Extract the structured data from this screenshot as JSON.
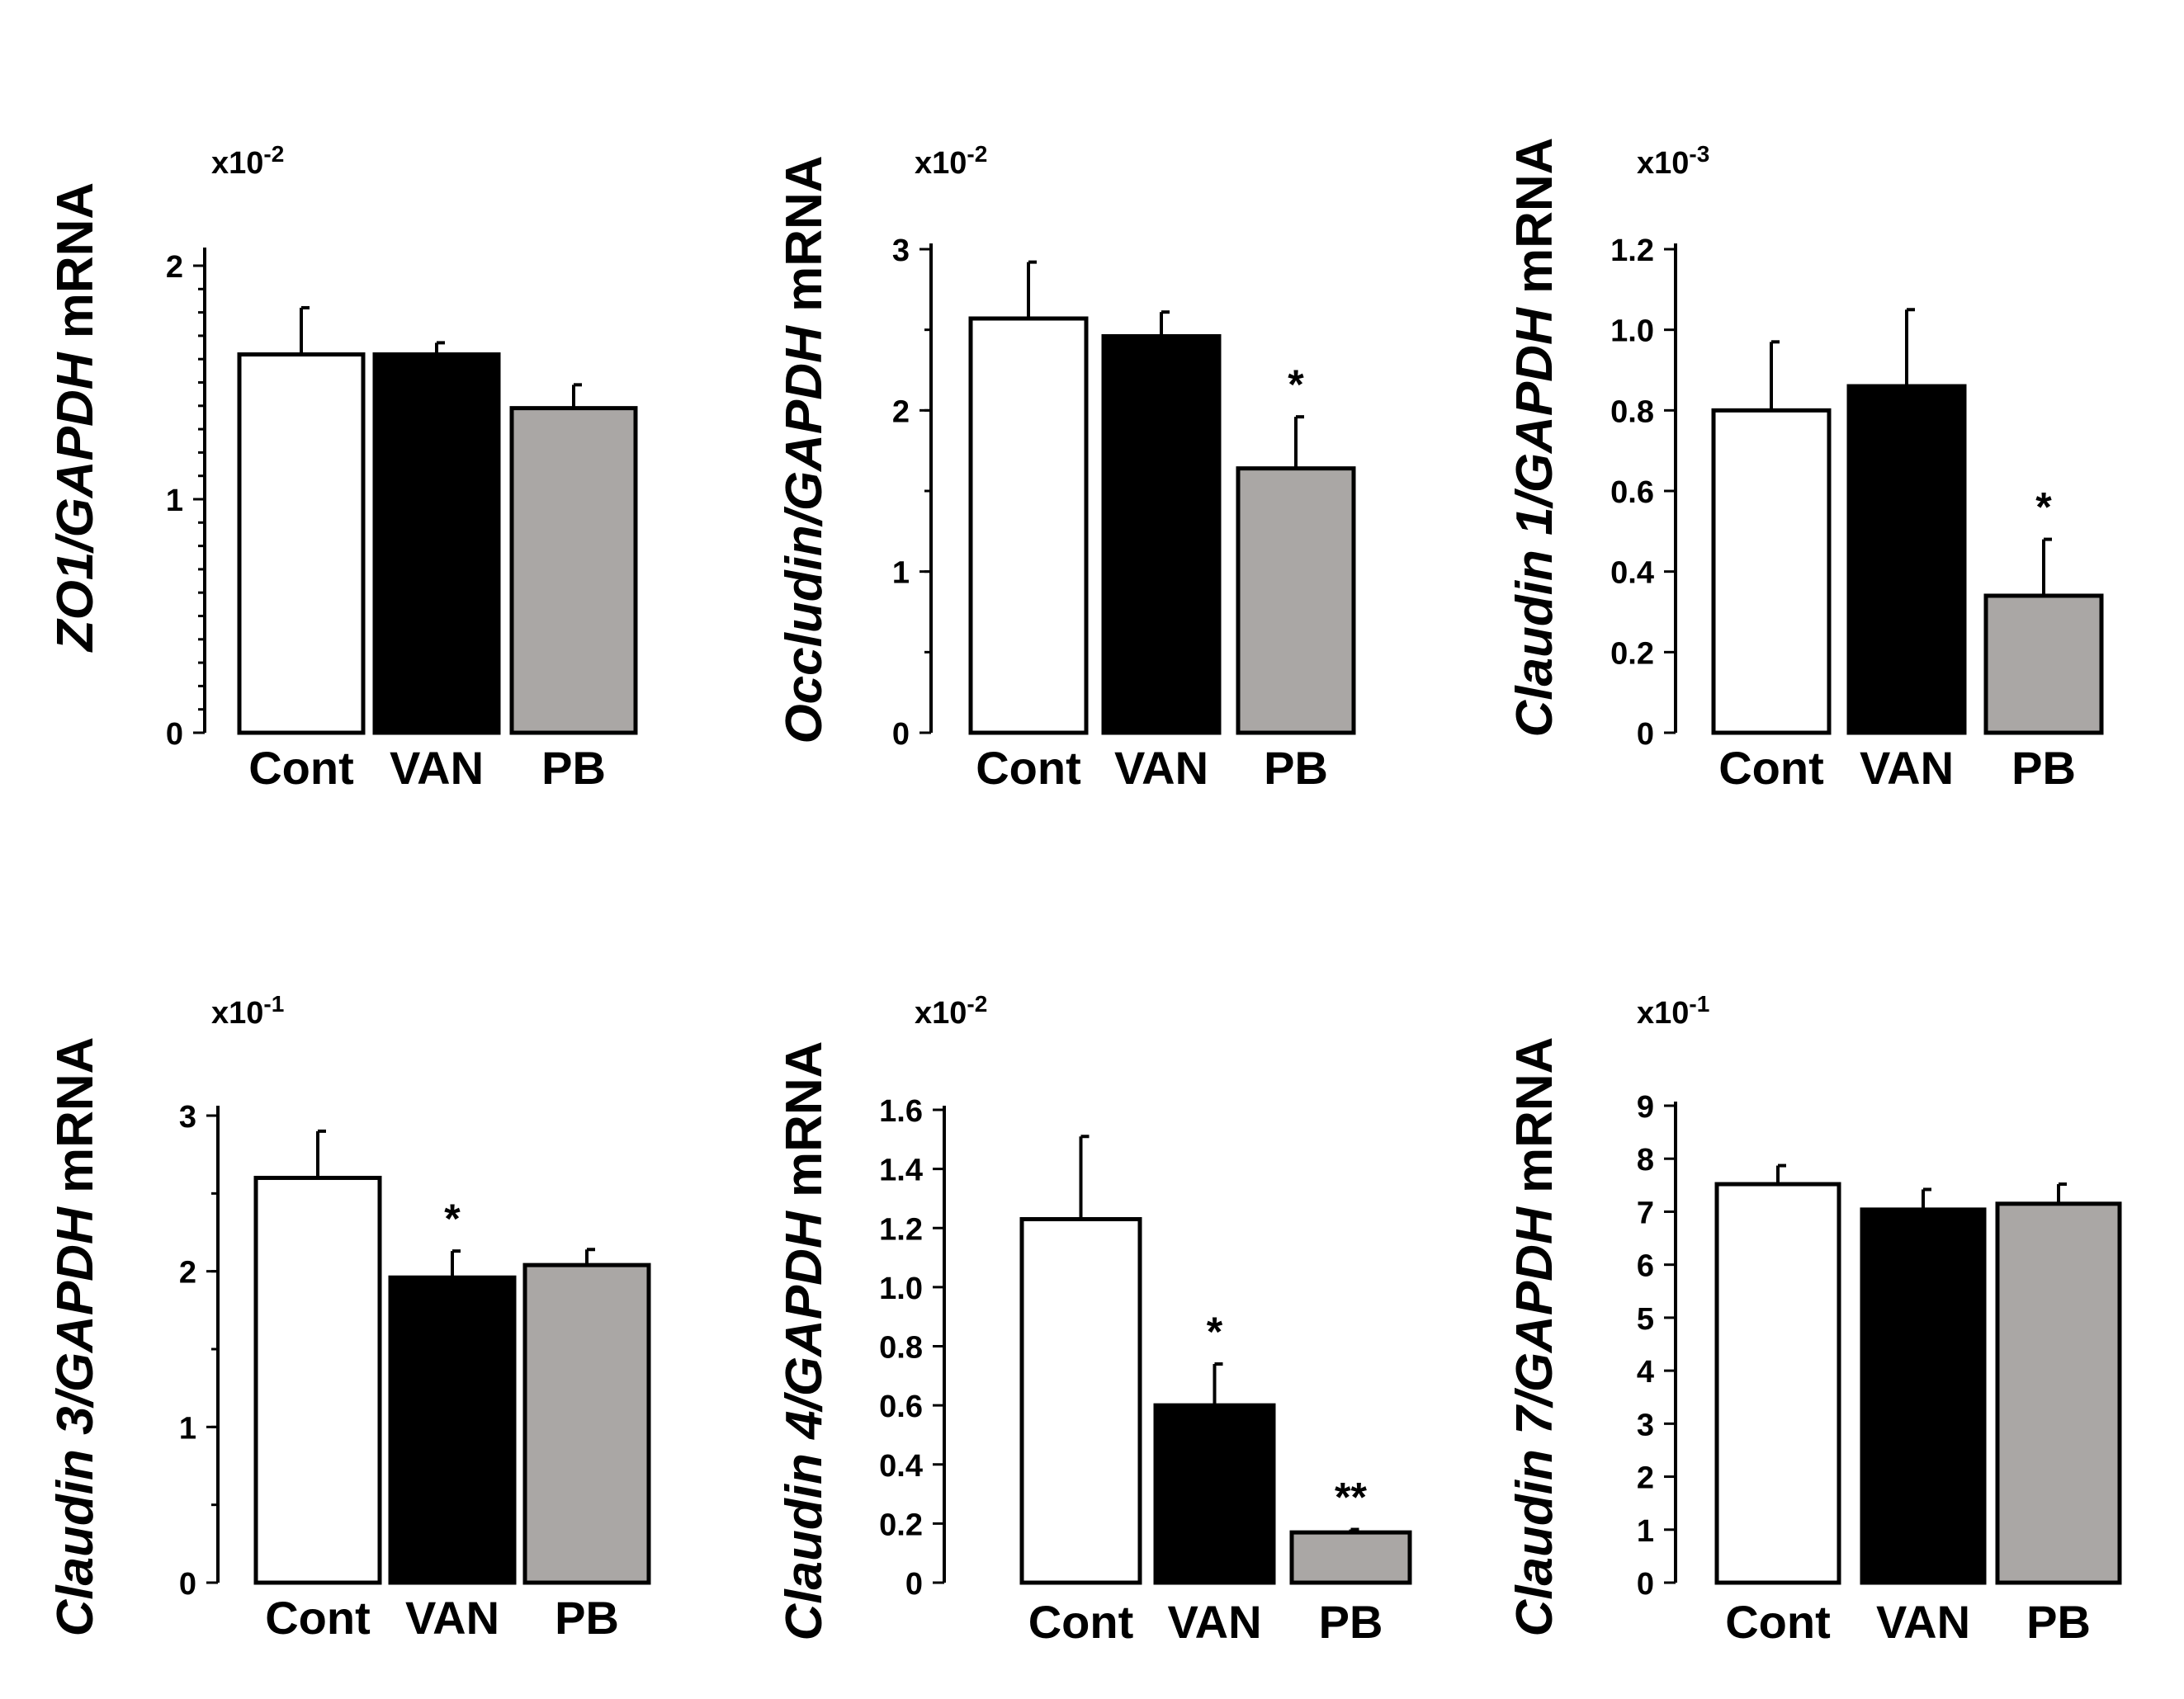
{
  "colors": {
    "Cont": "#ffffff",
    "VAN": "#000000",
    "PB": "#aaa7a5",
    "stroke": "#000000"
  },
  "chart_data": [
    {
      "type": "bar",
      "ylabel": {
        "gene": "ZO1",
        "ref": "GAPDH",
        "suffix": "mRNA"
      },
      "multiplier": {
        "base": "x10",
        "exp": "-2"
      },
      "ylim": [
        0,
        2
      ],
      "yticks": [
        0,
        1,
        2
      ],
      "ytick_labels": [
        "0",
        "1",
        "2"
      ],
      "minor_ticks": 20,
      "categories": [
        "Cont",
        "VAN",
        "PB"
      ],
      "values": [
        1.62,
        1.62,
        1.39
      ],
      "errors": [
        0.2,
        0.05,
        0.1
      ],
      "significance": [
        "",
        "",
        ""
      ]
    },
    {
      "type": "bar",
      "ylabel": {
        "gene": "Occludin",
        "ref": "GAPDH",
        "suffix": "mRNA"
      },
      "multiplier": {
        "base": "x10",
        "exp": "-2"
      },
      "ylim": [
        0,
        3
      ],
      "yticks": [
        0,
        1,
        2,
        3
      ],
      "ytick_labels": [
        "0",
        "1",
        "2",
        "3"
      ],
      "minor_ticks": 6,
      "categories": [
        "Cont",
        "VAN",
        "PB"
      ],
      "values": [
        2.57,
        2.46,
        1.64
      ],
      "errors": [
        0.35,
        0.15,
        0.32
      ],
      "significance": [
        "",
        "",
        "*"
      ]
    },
    {
      "type": "bar",
      "ylabel": {
        "gene": "Claudin 1",
        "ref": "GAPDH",
        "suffix": "mRNA"
      },
      "multiplier": {
        "base": "x10",
        "exp": "-3"
      },
      "ylim": [
        0,
        1.2
      ],
      "yticks": [
        0,
        0.2,
        0.4,
        0.6,
        0.8,
        1.0,
        1.2
      ],
      "ytick_labels": [
        "0",
        "0.2",
        "0.4",
        "0.6",
        "0.8",
        "1.0",
        "1.2"
      ],
      "minor_ticks": 0,
      "categories": [
        "Cont",
        "VAN",
        "PB"
      ],
      "values": [
        0.8,
        0.86,
        0.34
      ],
      "errors": [
        0.17,
        0.19,
        0.14
      ],
      "significance": [
        "",
        "",
        "*"
      ]
    },
    {
      "type": "bar",
      "ylabel": {
        "gene": "Claudin 3",
        "ref": "GAPDH",
        "suffix": "mRNA"
      },
      "multiplier": {
        "base": "x10",
        "exp": "-1"
      },
      "ylim": [
        0,
        3
      ],
      "yticks": [
        0,
        1,
        2,
        3
      ],
      "ytick_labels": [
        "0",
        "1",
        "2",
        "3"
      ],
      "minor_ticks": 6,
      "categories": [
        "Cont",
        "VAN",
        "PB"
      ],
      "values": [
        2.6,
        1.96,
        2.04
      ],
      "errors": [
        0.3,
        0.17,
        0.1
      ],
      "significance": [
        "",
        "*",
        ""
      ]
    },
    {
      "type": "bar",
      "ylabel": {
        "gene": "Claudin 4",
        "ref": "GAPDH",
        "suffix": "mRNA"
      },
      "multiplier": {
        "base": "x10",
        "exp": "-2"
      },
      "ylim": [
        0,
        1.6
      ],
      "yticks": [
        0,
        0.2,
        0.4,
        0.6,
        0.8,
        1.0,
        1.2,
        1.4,
        1.6
      ],
      "ytick_labels": [
        "0",
        "0.2",
        "0.4",
        "0.6",
        "0.8",
        "1.0",
        "1.2",
        "1.4",
        "1.6"
      ],
      "minor_ticks": 0,
      "categories": [
        "Cont",
        "VAN",
        "PB"
      ],
      "values": [
        1.23,
        0.6,
        0.17
      ],
      "errors": [
        0.28,
        0.14,
        0.01
      ],
      "significance": [
        "",
        "*",
        "**"
      ]
    },
    {
      "type": "bar",
      "ylabel": {
        "gene": "Claudin 7",
        "ref": "GAPDH",
        "suffix": "mRNA"
      },
      "multiplier": {
        "base": "x10",
        "exp": "-1"
      },
      "ylim": [
        0,
        9
      ],
      "yticks": [
        0,
        1,
        2,
        3,
        4,
        5,
        6,
        7,
        8,
        9
      ],
      "ytick_labels": [
        "0",
        "1",
        "2",
        "3",
        "4",
        "5",
        "6",
        "7",
        "8",
        "9"
      ],
      "minor_ticks": 0,
      "categories": [
        "Cont",
        "VAN",
        "PB"
      ],
      "values": [
        7.52,
        7.04,
        7.15
      ],
      "errors": [
        0.35,
        0.38,
        0.37
      ],
      "significance": [
        "",
        "",
        ""
      ]
    }
  ]
}
